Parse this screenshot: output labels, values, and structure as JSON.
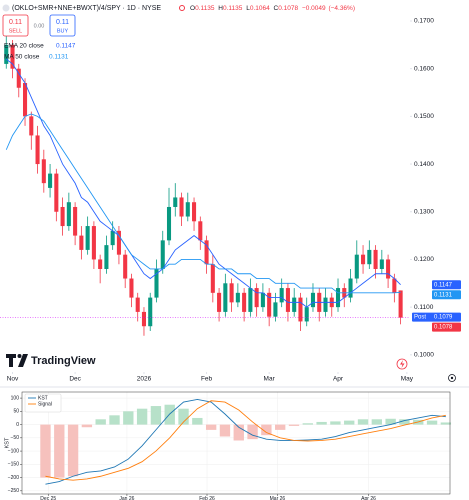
{
  "chart_data": [
    {
      "type": "candlestick",
      "title": "(OKLO+SMR+NNE+BWXT)/4/SPY · 1D · NYSE",
      "quote": [
        {
          "label": "O",
          "value": 0.1135
        },
        {
          "label": "H",
          "value": 0.1135
        },
        {
          "label": "L",
          "value": 0.1064
        },
        {
          "label": "C",
          "value": 0.1078
        }
      ],
      "change": {
        "value": -0.0049,
        "label": "−0.0049"
      },
      "change_pct": {
        "value": -4.36,
        "label": "(−4.36%)"
      },
      "sell": {
        "price": 0.11,
        "label": "SELL"
      },
      "spread": {
        "value": 0,
        "label": "0.00"
      },
      "buy": {
        "price": 0.11,
        "label": "BUY"
      },
      "brand": "TradingView",
      "up_color": "#089981",
      "down_color": "#f23645",
      "categories": [
        null,
        null,
        null,
        null,
        null,
        null,
        null,
        null,
        null,
        null,
        null,
        null,
        null,
        null,
        null,
        null,
        null,
        null,
        null,
        null,
        null,
        null,
        null,
        null,
        null,
        null,
        null,
        null,
        null,
        null,
        null,
        null,
        null,
        null,
        null,
        null,
        null,
        null,
        null,
        null,
        null,
        null,
        null,
        null,
        null,
        null,
        null,
        null,
        null,
        null,
        null,
        null,
        null,
        null,
        null,
        null,
        null,
        null,
        null,
        null,
        null,
        null,
        null,
        null
      ],
      "open": [
        0.161,
        0.165,
        0.16,
        0.157,
        0.15,
        0.146,
        0.141,
        0.135,
        0.138,
        0.131,
        0.127,
        0.131,
        0.125,
        0.122,
        0.127,
        0.12,
        0.118,
        0.123,
        0.126,
        0.121,
        0.116,
        0.112,
        0.109,
        0.106,
        0.112,
        0.118,
        0.124,
        0.131,
        0.133,
        0.129,
        0.132,
        0.128,
        0.124,
        0.119,
        0.113,
        0.109,
        0.115,
        0.111,
        0.113,
        0.109,
        0.114,
        0.11,
        0.113,
        0.108,
        0.111,
        0.114,
        0.109,
        0.112,
        0.107,
        0.11,
        0.113,
        0.109,
        0.112,
        0.11,
        0.114,
        0.112,
        0.116,
        0.121,
        0.119,
        0.122,
        0.118,
        0.12,
        0.116,
        0.1135
      ],
      "high": [
        0.168,
        0.166,
        0.161,
        0.158,
        0.151,
        0.148,
        0.143,
        0.14,
        0.139,
        0.133,
        0.134,
        0.132,
        0.127,
        0.129,
        0.128,
        0.121,
        0.125,
        0.128,
        0.127,
        0.122,
        0.117,
        0.113,
        0.11,
        0.113,
        0.12,
        0.126,
        0.135,
        0.136,
        0.134,
        0.134,
        0.133,
        0.129,
        0.125,
        0.121,
        0.114,
        0.117,
        0.116,
        0.115,
        0.114,
        0.116,
        0.115,
        0.115,
        0.114,
        0.113,
        0.116,
        0.115,
        0.114,
        0.113,
        0.112,
        0.115,
        0.114,
        0.114,
        0.113,
        0.116,
        0.115,
        0.118,
        0.124,
        0.123,
        0.124,
        0.123,
        0.122,
        0.121,
        0.117,
        0.1135
      ],
      "low": [
        0.16,
        0.158,
        0.154,
        0.148,
        0.143,
        0.138,
        0.134,
        0.133,
        0.128,
        0.125,
        0.126,
        0.123,
        0.12,
        0.121,
        0.118,
        0.115,
        0.117,
        0.122,
        0.119,
        0.114,
        0.11,
        0.107,
        0.104,
        0.105,
        0.111,
        0.117,
        0.123,
        0.129,
        0.127,
        0.128,
        0.126,
        0.122,
        0.117,
        0.111,
        0.107,
        0.108,
        0.109,
        0.11,
        0.107,
        0.108,
        0.108,
        0.109,
        0.106,
        0.107,
        0.11,
        0.107,
        0.108,
        0.105,
        0.106,
        0.109,
        0.107,
        0.108,
        0.108,
        0.109,
        0.11,
        0.111,
        0.115,
        0.117,
        0.118,
        0.116,
        0.117,
        0.114,
        0.111,
        0.1064
      ],
      "close": [
        0.165,
        0.16,
        0.156,
        0.15,
        0.146,
        0.14,
        0.136,
        0.138,
        0.13,
        0.127,
        0.132,
        0.125,
        0.122,
        0.127,
        0.12,
        0.118,
        0.123,
        0.126,
        0.121,
        0.116,
        0.112,
        0.109,
        0.106,
        0.112,
        0.118,
        0.124,
        0.131,
        0.133,
        0.129,
        0.132,
        0.128,
        0.124,
        0.119,
        0.113,
        0.109,
        0.115,
        0.111,
        0.113,
        0.109,
        0.114,
        0.11,
        0.113,
        0.108,
        0.111,
        0.114,
        0.109,
        0.112,
        0.107,
        0.11,
        0.113,
        0.109,
        0.112,
        0.11,
        0.114,
        0.112,
        0.116,
        0.121,
        0.119,
        0.122,
        0.118,
        0.12,
        0.116,
        0.113,
        0.1078
      ],
      "indicators": [
        {
          "name": "EMA 20 close",
          "value": 0.1147,
          "color": "#2962ff",
          "values": [
            0.162,
            0.161,
            0.159,
            0.157,
            0.154,
            0.151,
            0.148,
            0.146,
            0.143,
            0.14,
            0.138,
            0.136,
            0.133,
            0.132,
            0.13,
            0.128,
            0.127,
            0.126,
            0.125,
            0.123,
            0.121,
            0.119,
            0.117,
            0.116,
            0.117,
            0.118,
            0.12,
            0.122,
            0.123,
            0.124,
            0.125,
            0.124,
            0.123,
            0.121,
            0.119,
            0.118,
            0.117,
            0.116,
            0.115,
            0.114,
            0.113,
            0.113,
            0.112,
            0.112,
            0.112,
            0.111,
            0.111,
            0.111,
            0.11,
            0.111,
            0.111,
            0.111,
            0.111,
            0.111,
            0.112,
            0.113,
            0.114,
            0.115,
            0.116,
            0.117,
            0.117,
            0.117,
            0.116,
            0.1147
          ]
        },
        {
          "name": "MA 50 close",
          "value": 0.1131,
          "color": "#2196f3",
          "values": [
            0.143,
            0.146,
            0.148,
            0.15,
            0.1505,
            0.15,
            0.149,
            0.147,
            0.145,
            0.143,
            0.141,
            0.139,
            0.137,
            0.135,
            0.133,
            0.131,
            0.129,
            0.127,
            0.125,
            0.123,
            0.121,
            0.12,
            0.119,
            0.118,
            0.118,
            0.118,
            0.119,
            0.119,
            0.12,
            0.12,
            0.12,
            0.12,
            0.119,
            0.119,
            0.118,
            0.118,
            0.118,
            0.117,
            0.117,
            0.117,
            0.116,
            0.116,
            0.116,
            0.115,
            0.115,
            0.115,
            0.115,
            0.114,
            0.114,
            0.114,
            0.114,
            0.114,
            0.114,
            0.113,
            0.113,
            0.113,
            0.113,
            0.113,
            0.113,
            0.113,
            0.113,
            0.113,
            0.113,
            0.1131
          ]
        }
      ],
      "post_price": {
        "label": "Post",
        "value": 0.1079,
        "color": "#2962ff"
      },
      "price_line_color": "#d500f9",
      "xlim": [
        -1,
        64.5
      ],
      "ylim": [
        0.0964,
        0.1744
      ],
      "xticks": [
        {
          "value": 1,
          "label": "Nov"
        },
        {
          "value": 11,
          "label": "Dec"
        },
        {
          "value": 22,
          "label": "2026"
        },
        {
          "value": 32,
          "label": "Feb"
        },
        {
          "value": 42,
          "label": "Mar"
        },
        {
          "value": 53,
          "label": "Apr"
        },
        {
          "value": 64,
          "label": "May"
        }
      ],
      "yticks": [
        {
          "value": 0.1,
          "label": "0.1000"
        },
        {
          "value": 0.11,
          "label": "0.1100"
        },
        {
          "value": 0.12,
          "label": "0.1200"
        },
        {
          "value": 0.13,
          "label": "0.1300"
        },
        {
          "value": 0.14,
          "label": "0.1400"
        },
        {
          "value": 0.15,
          "label": "0.1500"
        },
        {
          "value": 0.16,
          "label": "0.1600"
        },
        {
          "value": 0.17,
          "label": "0.1700"
        }
      ],
      "grid": false
    },
    {
      "type": "line",
      "ylabel": "KST",
      "categories": [
        null,
        null,
        null,
        null,
        null,
        null,
        null,
        null,
        null,
        null,
        null,
        null,
        null,
        null,
        null,
        null,
        null,
        null,
        null,
        null,
        null,
        null,
        null,
        null,
        null,
        null,
        null,
        null,
        null,
        null
      ],
      "series": [
        {
          "name": "KST",
          "color": "#1f77b4",
          "values": [
            -225,
            -215,
            -195,
            -180,
            -175,
            -160,
            -130,
            -80,
            -20,
            40,
            85,
            95,
            85,
            40,
            -10,
            -40,
            -55,
            -60,
            -60,
            -58,
            -55,
            -45,
            -30,
            -20,
            -10,
            0,
            15,
            25,
            35,
            30
          ]
        },
        {
          "name": "Signal",
          "color": "#ff7f0e",
          "values": [
            -195,
            -205,
            -210,
            -205,
            -195,
            -180,
            -165,
            -140,
            -100,
            -50,
            10,
            60,
            90,
            85,
            55,
            10,
            -30,
            -50,
            -60,
            -62,
            -60,
            -55,
            -45,
            -35,
            -25,
            -15,
            -2,
            10,
            25,
            35
          ]
        }
      ],
      "histogram": {
        "positive_color": "#b7e1c9",
        "negative_color": "#f6c1bd",
        "values": [
          -200,
          -200,
          -195,
          -10,
          20,
          35,
          50,
          60,
          70,
          75,
          60,
          25,
          -20,
          -45,
          -60,
          -55,
          -40,
          -20,
          -5,
          5,
          10,
          12,
          15,
          20,
          20,
          22,
          20,
          18,
          15,
          8
        ]
      },
      "xlim": [
        -1.7,
        29.3
      ],
      "ylim": [
        -262,
        123
      ],
      "xticks": [
        {
          "value": 0.2,
          "label": "Dec 25"
        },
        {
          "value": 5.9,
          "label": "Jan 26"
        },
        {
          "value": 11.7,
          "label": "Feb 26"
        },
        {
          "value": 16.8,
          "label": "Mar 26"
        },
        {
          "value": 23.4,
          "label": "Apr 26"
        }
      ],
      "yticks": [
        {
          "value": -250,
          "label": "−250"
        },
        {
          "value": -200,
          "label": "−200"
        },
        {
          "value": -150,
          "label": "−150"
        },
        {
          "value": -100,
          "label": "−100"
        },
        {
          "value": -50,
          "label": "−50"
        },
        0,
        50,
        100
      ],
      "grid": true
    }
  ]
}
